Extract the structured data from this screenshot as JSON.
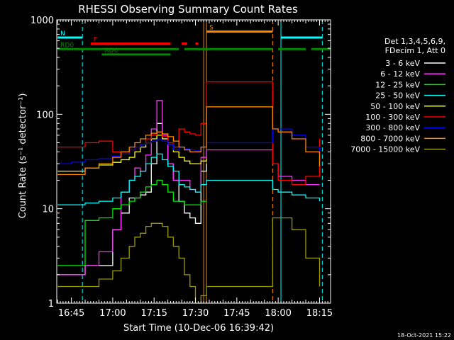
{
  "chart_data": {
    "type": "line",
    "title": "RHESSI Observing Summary Count Rates",
    "xlabel": "Start Time (10-Dec-06 16:39:42)",
    "ylabel": "Count Rate (s⁻¹ detector⁻¹)",
    "y_scale": "log",
    "ylim": [
      1,
      1000
    ],
    "xlim": [
      "16:39:42",
      "18:19:00"
    ],
    "x_ticks": [
      "16:45",
      "17:00",
      "17:15",
      "17:30",
      "17:45",
      "18:00",
      "18:15"
    ],
    "y_ticks": [
      "1",
      "10",
      "100",
      "1000"
    ],
    "legend_header": [
      "Det 1,3,4,5,6,9,",
      "FDecim 1, Att 0"
    ],
    "series": [
      {
        "name": "3 - 6 keV",
        "color": "#ffffff",
        "x": [
          "16:40",
          "16:45",
          "16:50",
          "16:55",
          "17:00",
          "17:03",
          "17:06",
          "17:08",
          "17:10",
          "17:12",
          "17:14",
          "17:16",
          "17:18",
          "17:20",
          "17:22",
          "17:24",
          "17:26",
          "17:28",
          "17:30",
          "17:32",
          "17:34"
        ],
        "y": [
          2.0,
          2.0,
          2.5,
          2.5,
          6,
          9,
          13,
          13,
          14,
          15,
          30,
          80,
          55,
          30,
          20,
          12,
          9,
          8,
          7,
          25,
          30
        ]
      },
      {
        "name": "6 - 12 keV",
        "color": "#ff33ff",
        "x": [
          "16:40",
          "16:45",
          "16:50",
          "16:55",
          "17:00",
          "17:03",
          "17:06",
          "17:08",
          "17:10",
          "17:12",
          "17:14",
          "17:16",
          "17:18",
          "17:20",
          "17:22",
          "17:24",
          "17:26",
          "17:28",
          "17:30",
          "17:32",
          "17:34",
          "17:58",
          "18:00",
          "18:05",
          "18:10",
          "18:15"
        ],
        "y": [
          2.0,
          2.0,
          2.5,
          3.5,
          6,
          15,
          20,
          27,
          25,
          37,
          70,
          140,
          60,
          30,
          20,
          20,
          20,
          16,
          15,
          35,
          42,
          30,
          22,
          20,
          18,
          18
        ]
      },
      {
        "name": "12 - 25 keV",
        "color": "#00ee00",
        "x": [
          "16:40",
          "16:45",
          "16:50",
          "16:55",
          "17:00",
          "17:03",
          "17:06",
          "17:08",
          "17:10",
          "17:12",
          "17:14",
          "17:16",
          "17:18",
          "17:20",
          "17:22",
          "17:24",
          "17:26",
          "17:28",
          "17:30",
          "17:32",
          "17:34"
        ],
        "y": [
          2.5,
          2.5,
          7.5,
          8,
          10,
          11,
          12,
          13,
          15,
          17,
          18,
          20,
          18,
          15,
          12,
          12,
          11,
          11,
          11,
          12,
          12
        ]
      },
      {
        "name": "25 - 50 keV",
        "color": "#00ffff",
        "x": [
          "16:40",
          "16:45",
          "16:50",
          "16:55",
          "17:00",
          "17:03",
          "17:06",
          "17:08",
          "17:10",
          "17:12",
          "17:14",
          "17:16",
          "17:18",
          "17:20",
          "17:22",
          "17:24",
          "17:26",
          "17:28",
          "17:30",
          "17:32",
          "17:34",
          "17:58",
          "18:00",
          "18:05",
          "18:10",
          "18:15"
        ],
        "y": [
          11,
          11,
          11.5,
          12,
          13,
          15,
          20,
          22,
          25,
          30,
          35,
          38,
          33,
          28,
          25,
          18,
          17,
          16,
          15,
          18,
          20,
          16,
          15,
          14,
          13,
          12
        ]
      },
      {
        "name": "50 - 100 keV",
        "color": "#ffff00",
        "x": [
          "16:40",
          "16:45",
          "16:50",
          "16:55",
          "17:00",
          "17:03",
          "17:06",
          "17:08",
          "17:10",
          "17:12",
          "17:14",
          "17:16",
          "17:18",
          "17:20",
          "17:22",
          "17:24",
          "17:26",
          "17:28",
          "17:30",
          "17:32",
          "17:34"
        ],
        "y": [
          25,
          25,
          27,
          29,
          31,
          33,
          35,
          40,
          45,
          50,
          55,
          60,
          55,
          48,
          40,
          35,
          32,
          30,
          30,
          32,
          34
        ]
      },
      {
        "name": "100 - 300 keV",
        "color": "#ff0000",
        "x": [
          "16:40",
          "16:45",
          "16:50",
          "16:55",
          "17:00",
          "17:03",
          "17:06",
          "17:08",
          "17:10",
          "17:12",
          "17:14",
          "17:16",
          "17:18",
          "17:20",
          "17:22",
          "17:24",
          "17:26",
          "17:28",
          "17:30",
          "17:32",
          "17:34",
          "17:58",
          "18:00",
          "18:05",
          "18:10",
          "18:15"
        ],
        "y": [
          45,
          45,
          50,
          52,
          40,
          38,
          42,
          45,
          48,
          55,
          60,
          65,
          58,
          50,
          45,
          70,
          65,
          62,
          60,
          80,
          220,
          30,
          20,
          18,
          22,
          55
        ]
      },
      {
        "name": "300 - 800 keV",
        "color": "#0000ff",
        "x": [
          "16:40",
          "16:45",
          "16:50",
          "16:55",
          "17:00",
          "17:03",
          "17:06",
          "17:08",
          "17:10",
          "17:12",
          "17:14",
          "17:16",
          "17:18",
          "17:20",
          "17:22",
          "17:24",
          "17:26",
          "17:28",
          "17:30",
          "17:32",
          "17:34",
          "17:58",
          "18:00",
          "18:05",
          "18:10",
          "18:15"
        ],
        "y": [
          30,
          31,
          33,
          34,
          36,
          38,
          42,
          45,
          48,
          50,
          52,
          54,
          52,
          48,
          42,
          45,
          43,
          42,
          41,
          45,
          50,
          70,
          70,
          60,
          45,
          35
        ]
      },
      {
        "name": "800 - 7000 keV",
        "color": "#ff8800",
        "x": [
          "16:40",
          "16:45",
          "16:50",
          "16:55",
          "17:00",
          "17:03",
          "17:06",
          "17:08",
          "17:10",
          "17:12",
          "17:14",
          "17:16",
          "17:18",
          "17:20",
          "17:22",
          "17:24",
          "17:26",
          "17:28",
          "17:30",
          "17:32",
          "17:34",
          "17:58",
          "18:00",
          "18:05",
          "18:10",
          "18:15"
        ],
        "y": [
          23,
          23,
          27,
          30,
          35,
          40,
          45,
          50,
          55,
          60,
          63,
          65,
          62,
          58,
          52,
          45,
          42,
          40,
          40,
          45,
          120,
          70,
          65,
          55,
          40,
          28
        ]
      },
      {
        "name": "7000 - 15000 keV",
        "color": "#999900",
        "x": [
          "16:40",
          "16:45",
          "16:50",
          "16:55",
          "17:00",
          "17:03",
          "17:06",
          "17:08",
          "17:10",
          "17:12",
          "17:14",
          "17:16",
          "17:18",
          "17:20",
          "17:22",
          "17:24",
          "17:26",
          "17:28",
          "17:30",
          "17:32",
          "17:34",
          "17:58",
          "18:00",
          "18:05",
          "18:10",
          "18:15"
        ],
        "y": [
          1.5,
          1.5,
          1.5,
          1.8,
          2.2,
          3.0,
          4.0,
          5.0,
          5.5,
          6.5,
          7.0,
          7.0,
          6.5,
          5.0,
          4.0,
          3.0,
          2.0,
          1.5,
          1.0,
          1.2,
          1.5,
          8,
          8,
          6,
          3,
          1.5
        ]
      }
    ],
    "state_bars": [
      {
        "label": "N",
        "color": "#00ffff",
        "segments": [
          [
            "16:40",
            "16:49"
          ],
          [
            "18:01",
            "18:16"
          ]
        ],
        "level": 650
      },
      {
        "label": "F",
        "color": "#ff0000",
        "segments": [
          [
            "16:52",
            "17:21"
          ],
          [
            "17:25",
            "17:27"
          ],
          [
            "17:30",
            "17:31"
          ]
        ],
        "level": 560
      },
      {
        "label": "S",
        "color": "#ff8800",
        "segments": [
          [
            "17:34",
            "17:58"
          ]
        ],
        "level": 750
      },
      {
        "label": "RD0",
        "color": "#008800",
        "segments": [
          [
            "16:40",
            "17:24"
          ],
          [
            "17:26",
            "17:58"
          ],
          [
            "18:00",
            "18:10"
          ],
          [
            "18:12",
            "18:19"
          ]
        ],
        "level": 490
      },
      {
        "label": "RD6",
        "color": "#008800",
        "segments": [
          [
            "16:56",
            "17:21"
          ]
        ],
        "level": 430
      }
    ],
    "vlines": [
      {
        "x": "16:49",
        "color": "#00ffff",
        "style": "dashed"
      },
      {
        "x": "17:33",
        "color": "#ff8800",
        "style": "solid"
      },
      {
        "x": "17:34",
        "color": "#ff8800",
        "style": "solid"
      },
      {
        "x": "17:58",
        "color": "#ff8800",
        "style": "dashed"
      },
      {
        "x": "18:01",
        "color": "#00ffff",
        "style": "solid"
      },
      {
        "x": "18:16",
        "color": "#00ffff",
        "style": "dashed"
      }
    ],
    "timestamp": "18-Oct-2021 15:22"
  }
}
